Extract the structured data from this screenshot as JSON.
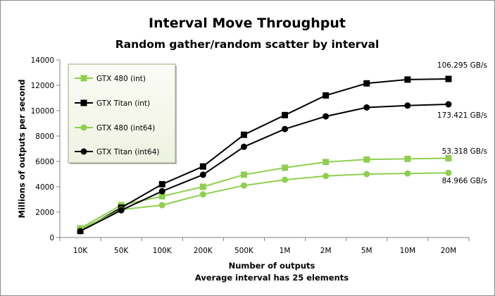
{
  "chart_data": {
    "type": "line",
    "title": "Interval Move Throughput",
    "subtitle": "Random gather/random  scatter by interval",
    "xlabel": "Number of outputs",
    "xlabel_sub": "Average interval has 25 elements",
    "ylabel": "Millions of outputs per second",
    "categories": [
      "10K",
      "50K",
      "100K",
      "200K",
      "500K",
      "1M",
      "2M",
      "5M",
      "10M",
      "20M"
    ],
    "ylim": [
      0,
      14000
    ],
    "yticks": [
      0,
      2000,
      4000,
      6000,
      8000,
      10000,
      12000,
      14000
    ],
    "grid": false,
    "legend_position": "top-left",
    "series": [
      {
        "name": "GTX 480 (int)",
        "color": "#8fcf4f",
        "marker": "square",
        "values": [
          720,
          2550,
          3250,
          4000,
          4950,
          5500,
          5950,
          6150,
          6200,
          6250
        ]
      },
      {
        "name": "GTX Titan (int)",
        "color": "#000000",
        "marker": "square",
        "values": [
          520,
          2350,
          4200,
          5600,
          8100,
          9650,
          11200,
          12150,
          12450,
          12500
        ]
      },
      {
        "name": "GTX 480 (int64)",
        "color": "#8fcf4f",
        "marker": "circle",
        "values": [
          650,
          2200,
          2550,
          3400,
          4100,
          4550,
          4850,
          5000,
          5050,
          5100
        ]
      },
      {
        "name": "GTX Titan (int64)",
        "color": "#000000",
        "marker": "circle",
        "values": [
          500,
          2150,
          3650,
          4950,
          7150,
          8550,
          9550,
          10250,
          10400,
          10500
        ]
      }
    ],
    "annotations": [
      "106.295 GB/s",
      "173.421 GB/s",
      "53.318 GB/s",
      "84.966 GB/s"
    ]
  }
}
